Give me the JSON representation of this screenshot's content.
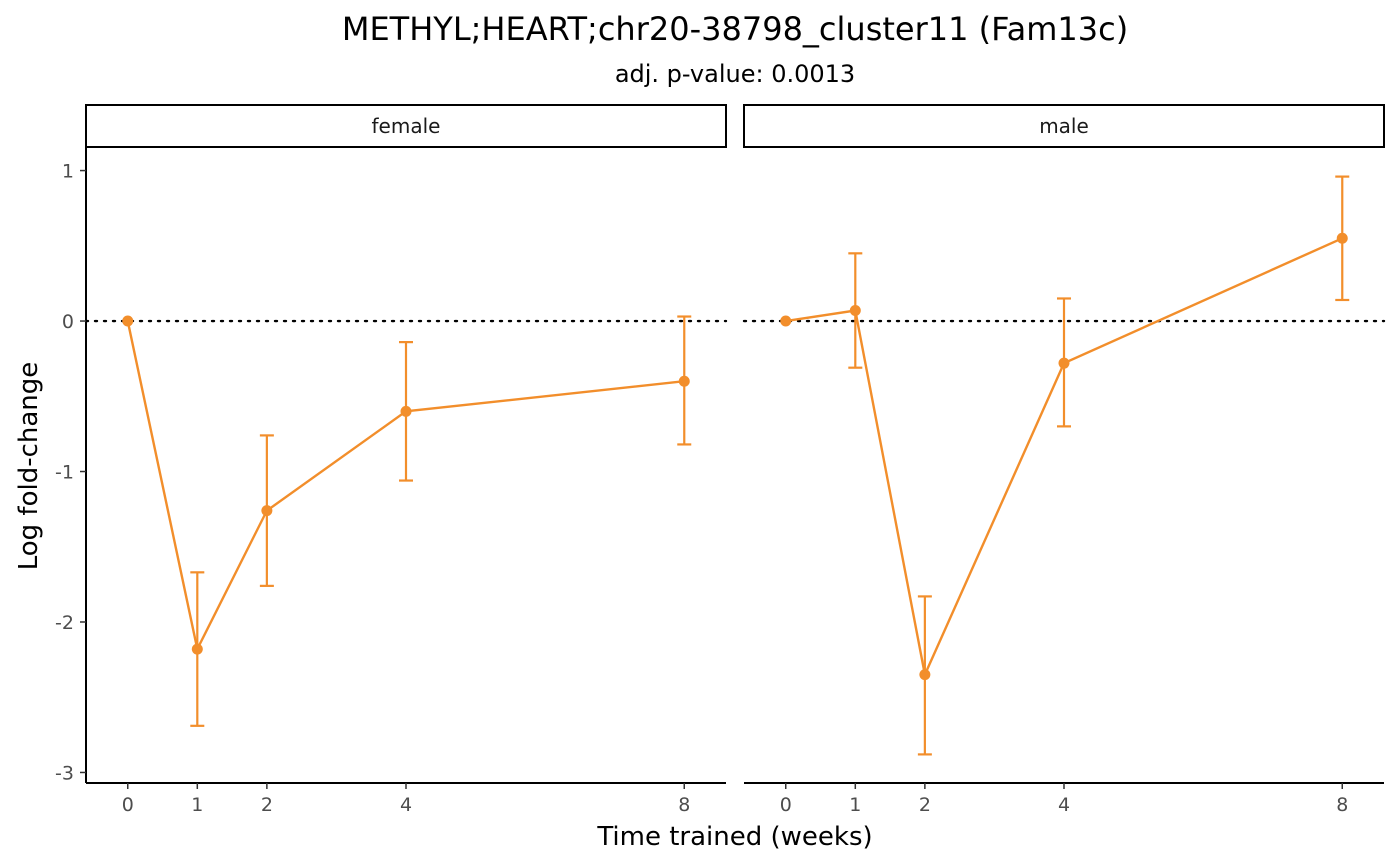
{
  "chart_data": {
    "type": "line",
    "title": "METHYL;HEART;chr20-38798_cluster11 (Fam13c)",
    "subtitle": "adj. p-value: 0.0013",
    "xlabel": "Time trained (weeks)",
    "ylabel": "Log fold-change",
    "x_ticks": [
      0,
      1,
      2,
      4,
      8
    ],
    "x_tick_labels": [
      "0",
      "1",
      "2",
      "4",
      "8"
    ],
    "y_ticks": [
      -3,
      -2,
      -1,
      0,
      1
    ],
    "y_tick_labels": [
      "-3",
      "-2",
      "-1",
      "0",
      "1"
    ],
    "xlim": [
      -0.6,
      8.6
    ],
    "ylim": [
      -3.07,
      1.15
    ],
    "reference_line": {
      "y": 0,
      "style": "dotted",
      "color": "#000000"
    },
    "series_color": "#f28e2b",
    "grid": false,
    "panels": [
      {
        "label": "female",
        "x": [
          0,
          1,
          2,
          4,
          8
        ],
        "y": [
          0.0,
          -2.18,
          -1.26,
          -0.6,
          -0.4
        ],
        "ymin": [
          0.0,
          -2.69,
          -1.76,
          -1.06,
          -0.82
        ],
        "ymax": [
          0.0,
          -1.67,
          -0.76,
          -0.14,
          0.03
        ]
      },
      {
        "label": "male",
        "x": [
          0,
          1,
          2,
          4,
          8
        ],
        "y": [
          0.0,
          0.07,
          -2.35,
          -0.28,
          0.55
        ],
        "ymin": [
          0.0,
          -0.31,
          -2.88,
          -0.7,
          0.14
        ],
        "ymax": [
          0.0,
          0.45,
          -1.83,
          0.15,
          0.96
        ]
      }
    ]
  }
}
